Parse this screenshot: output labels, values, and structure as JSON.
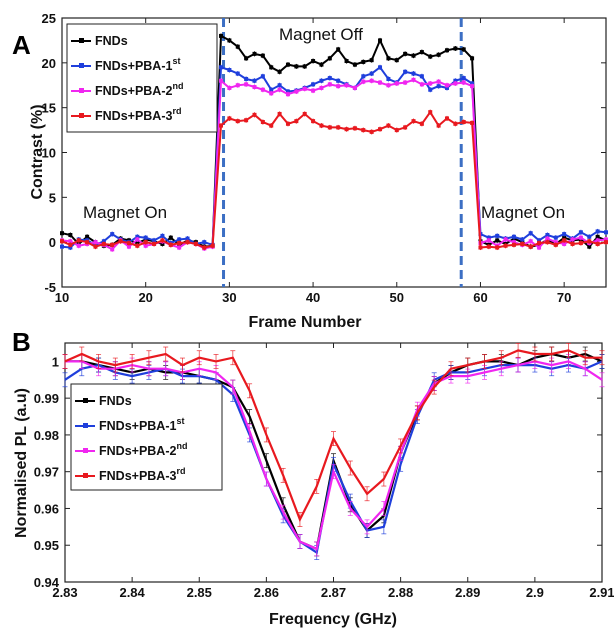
{
  "chart_data": [
    {
      "panel": "A",
      "type": "line",
      "xlabel": "Frame Number",
      "ylabel": "Contrast (%)",
      "xlim": [
        10,
        75
      ],
      "ylim": [
        -5,
        25
      ],
      "xticks": [
        10,
        20,
        30,
        40,
        50,
        60,
        70
      ],
      "yticks": [
        -5,
        0,
        5,
        10,
        15,
        20,
        25
      ],
      "grid": false,
      "legend_position": "top-left",
      "markers": "square",
      "annotations": [
        "Magnet On",
        "Magnet Off",
        "Magnet On"
      ],
      "vlines": [
        29.3,
        57.7
      ],
      "x_start": 10,
      "x_step": 1,
      "series": [
        {
          "name": "FNDs",
          "sup": "",
          "color": "#000000",
          "values": [
            1.0,
            0.8,
            -0.2,
            0.6,
            0.0,
            -0.4,
            -0.3,
            0.4,
            0.2,
            -0.1,
            0.3,
            0.1,
            -0.2,
            0.5,
            -0.3,
            0.2,
            0.0,
            -0.5,
            -0.4,
            23.0,
            22.5,
            21.8,
            20.5,
            21.0,
            20.8,
            19.5,
            19.0,
            19.8,
            19.6,
            19.6,
            20.2,
            19.8,
            20.5,
            21.5,
            20.2,
            19.8,
            20.1,
            20.3,
            22.5,
            20.5,
            20.3,
            21.0,
            20.8,
            21.2,
            20.7,
            20.9,
            21.4,
            21.6,
            21.5,
            20.5,
            0.1,
            -0.3,
            0.2,
            -0.2,
            0.4,
            0.0,
            -0.5,
            -0.3,
            0.3,
            -0.2,
            0.5,
            0.2,
            0.3,
            -0.5,
            0.6,
            0.2
          ]
        },
        {
          "name": "FNDs+PBA-1",
          "sup": "st",
          "color": "#1f3fdc",
          "values": [
            -0.5,
            -0.6,
            0.3,
            0.2,
            -0.3,
            0.1,
            0.9,
            0.3,
            0.0,
            0.6,
            0.5,
            0.2,
            0.7,
            -0.1,
            0.3,
            0.4,
            -0.2,
            0.0,
            -0.3,
            19.5,
            19.2,
            18.8,
            18.2,
            18.0,
            18.5,
            17.0,
            17.5,
            16.8,
            16.9,
            17.2,
            17.6,
            18.0,
            18.3,
            18.0,
            17.6,
            17.2,
            18.5,
            18.8,
            19.5,
            18.2,
            17.8,
            19.0,
            18.8,
            18.5,
            17.0,
            17.4,
            17.2,
            18.0,
            18.3,
            17.7,
            0.9,
            0.5,
            0.7,
            0.4,
            0.6,
            0.3,
            1.0,
            0.2,
            0.8,
            0.5,
            0.9,
            0.4,
            1.1,
            0.6,
            1.2,
            1.1
          ]
        },
        {
          "name": "FNDs+PBA-2",
          "sup": "nd",
          "color": "#f026f0",
          "values": [
            0.2,
            0.1,
            -0.4,
            -0.2,
            0.0,
            -0.3,
            -0.8,
            0.2,
            -0.5,
            0.3,
            -0.4,
            -0.2,
            0.1,
            -0.3,
            -0.6,
            0.0,
            -0.2,
            -0.7,
            -0.5,
            18.0,
            17.2,
            17.5,
            17.6,
            17.3,
            17.0,
            16.6,
            17.0,
            16.5,
            16.8,
            17.1,
            16.9,
            17.2,
            17.6,
            17.4,
            17.5,
            17.2,
            17.9,
            18.0,
            17.8,
            17.5,
            17.7,
            17.8,
            18.1,
            17.6,
            17.7,
            17.9,
            17.5,
            17.7,
            17.8,
            17.4,
            -0.1,
            0.2,
            -0.4,
            0.3,
            0.0,
            -0.3,
            0.1,
            -0.6,
            0.4,
            0.0,
            -0.2,
            0.3,
            0.5,
            -0.1,
            0.2,
            0.3
          ]
        },
        {
          "name": "FNDs+PBA-3",
          "sup": "rd",
          "color": "#e8191f",
          "values": [
            0.1,
            -0.3,
            0.2,
            0.0,
            -0.5,
            -0.2,
            -0.3,
            0.1,
            -0.1,
            -0.4,
            0.0,
            -0.2,
            0.2,
            -0.3,
            -0.1,
            0.0,
            -0.2,
            -0.6,
            -0.4,
            13.0,
            13.8,
            13.5,
            13.6,
            14.2,
            13.4,
            13.0,
            14.3,
            13.2,
            13.5,
            14.3,
            13.5,
            13.0,
            12.8,
            12.8,
            12.6,
            12.7,
            12.5,
            12.3,
            12.6,
            13.0,
            12.5,
            12.8,
            13.5,
            13.2,
            14.5,
            13.0,
            13.8,
            13.2,
            13.4,
            13.3,
            -0.6,
            -0.5,
            -0.6,
            -0.4,
            -0.3,
            -0.2,
            -0.5,
            -0.1,
            0.0,
            -0.3,
            0.2,
            -0.2,
            -0.1,
            0.1,
            -0.2,
            0.0
          ]
        }
      ]
    },
    {
      "panel": "B",
      "type": "line",
      "xlabel": "Frequency (GHz)",
      "ylabel": "Normalised PL (a.u)",
      "xlim": [
        2.83,
        2.91
      ],
      "ylim": [
        0.94,
        1.005
      ],
      "xticks": [
        2.83,
        2.84,
        2.85,
        2.86,
        2.87,
        2.88,
        2.89,
        2.9,
        2.91
      ],
      "yticks": [
        0.94,
        0.95,
        0.96,
        0.97,
        0.98,
        0.99,
        1
      ],
      "grid": false,
      "legend_position": "middle-left",
      "error_bars": true,
      "x": [
        2.83,
        2.8325,
        2.835,
        2.8375,
        2.84,
        2.8425,
        2.845,
        2.8475,
        2.85,
        2.8525,
        2.855,
        2.8575,
        2.86,
        2.8625,
        2.865,
        2.8675,
        2.87,
        2.8725,
        2.875,
        2.8775,
        2.88,
        2.8825,
        2.885,
        2.8875,
        2.89,
        2.8925,
        2.895,
        2.8975,
        2.9,
        2.9025,
        2.905,
        2.9075,
        2.91
      ],
      "series": [
        {
          "name": "FNDs",
          "sup": "",
          "color": "#000000",
          "values": [
            1.0,
            1.0,
            0.999,
            0.998,
            0.997,
            0.998,
            0.997,
            0.997,
            0.996,
            0.995,
            0.993,
            0.985,
            0.973,
            0.961,
            0.951,
            0.949,
            0.973,
            0.961,
            0.954,
            0.958,
            0.975,
            0.986,
            0.994,
            0.997,
            0.999,
            1.0,
            1.0,
            0.999,
            1.001,
            1.002,
            1.001,
            1.002,
            1.0
          ]
        },
        {
          "name": "FNDs+PBA-1",
          "sup": "st",
          "color": "#1f3fdc",
          "values": [
            0.995,
            0.998,
            0.999,
            0.997,
            0.996,
            0.997,
            0.998,
            0.996,
            0.996,
            0.995,
            0.991,
            0.98,
            0.968,
            0.958,
            0.951,
            0.948,
            0.972,
            0.962,
            0.954,
            0.955,
            0.972,
            0.985,
            0.995,
            0.997,
            0.997,
            0.998,
            0.999,
            0.999,
            0.999,
            0.998,
            0.999,
            0.998,
            1.0
          ]
        },
        {
          "name": "FNDs+PBA-2",
          "sup": "nd",
          "color": "#f026f0",
          "values": [
            1.0,
            1.0,
            0.998,
            0.998,
            0.999,
            0.998,
            0.998,
            0.997,
            0.998,
            0.997,
            0.993,
            0.981,
            0.968,
            0.959,
            0.951,
            0.949,
            0.97,
            0.96,
            0.955,
            0.96,
            0.975,
            0.987,
            0.994,
            0.996,
            0.996,
            0.997,
            0.998,
            0.999,
            1.0,
            0.999,
            1.0,
            0.998,
            0.995
          ]
        },
        {
          "name": "FNDs+PBA-3",
          "sup": "rd",
          "color": "#e8191f",
          "values": [
            1.0,
            1.002,
            1.0,
            0.999,
            1.0,
            1.001,
            1.002,
            0.999,
            1.001,
            1.0,
            1.001,
            0.992,
            0.98,
            0.969,
            0.957,
            0.966,
            0.979,
            0.971,
            0.964,
            0.968,
            0.977,
            0.986,
            0.993,
            0.998,
            0.999,
            1.0,
            1.001,
            1.003,
            1.002,
            1.002,
            1.003,
            1.001,
            1.001
          ]
        }
      ]
    }
  ]
}
